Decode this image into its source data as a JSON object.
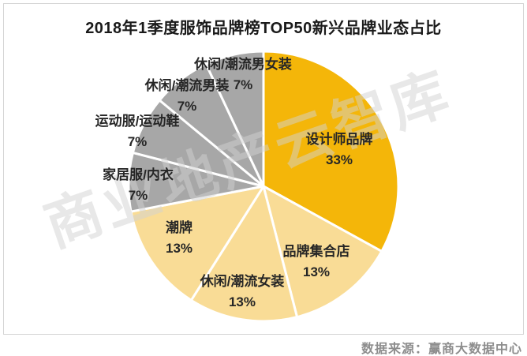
{
  "title": "2018年1季度服饰品牌榜TOP50新兴品牌业态占比",
  "watermark": "商业地产云智库",
  "source_note": "数据来源：赢商大数据中心",
  "colors": {
    "accent_orange": "#F4B609",
    "light_yellow": "#F9DC96",
    "gray": "#A7A7A7",
    "slice_border": "#FFFFFF",
    "frame_border": "#D4D4D4",
    "label_text": "#262626",
    "source_text": "#8D8D8D"
  },
  "chart_data": {
    "type": "pie",
    "title": "2018年1季度服饰品牌榜TOP50新兴品牌业态占比",
    "unit": "percent",
    "start_angle_deg": 0,
    "direction": "clockwise",
    "legend_position": "none",
    "slices": [
      {
        "label": "设计师品牌",
        "value": 33,
        "value_label": "33%",
        "color": "#F4B609"
      },
      {
        "label": "品牌集合店",
        "value": 13,
        "value_label": "13%",
        "color": "#F9DC96"
      },
      {
        "label": "休闲/潮流女装",
        "value": 13,
        "value_label": "13%",
        "color": "#F9DC96"
      },
      {
        "label": "潮牌",
        "value": 13,
        "value_label": "13%",
        "color": "#F9DC96"
      },
      {
        "label": "家居服/内衣",
        "value": 7,
        "value_label": "7%",
        "color": "#A7A7A7"
      },
      {
        "label": "运动服/运动鞋",
        "value": 7,
        "value_label": "7%",
        "color": "#A7A7A7"
      },
      {
        "label": "休闲/潮流男装",
        "value": 7,
        "value_label": "7%",
        "color": "#A7A7A7"
      },
      {
        "label": "休闲/潮流男女装",
        "value": 7,
        "value_label": "7%",
        "color": "#A7A7A7"
      }
    ]
  }
}
